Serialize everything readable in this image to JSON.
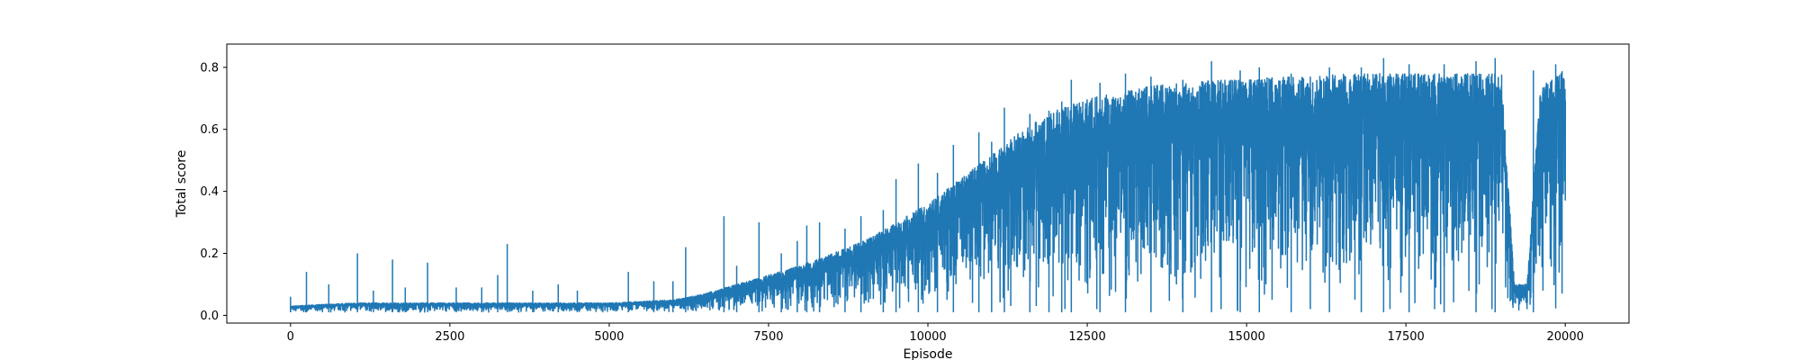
{
  "chart_data": {
    "type": "line",
    "title": "",
    "xlabel": "Episode",
    "ylabel": "Total score",
    "xlim": [
      -1000,
      21000
    ],
    "ylim": [
      -0.025,
      0.875
    ],
    "grid": false,
    "x_ticks": [
      0,
      2500,
      5000,
      7500,
      10000,
      12500,
      15000,
      17500,
      20000
    ],
    "y_ticks": [
      0.0,
      0.2,
      0.4,
      0.6,
      0.8
    ],
    "x_tick_labels": [
      "0",
      "2500",
      "5000",
      "7500",
      "10000",
      "12500",
      "15000",
      "17500",
      "20000"
    ],
    "y_tick_labels": [
      "0.0",
      "0.2",
      "0.4",
      "0.6",
      "0.8"
    ],
    "series": [
      {
        "color": "#1f77b4",
        "band": {
          "x": [
            0,
            1000,
            2000,
            3000,
            4000,
            5000,
            6000,
            6500,
            7000,
            7500,
            8000,
            8500,
            9000,
            9500,
            10000,
            10500,
            11000,
            11500,
            12000,
            12500,
            13000,
            13500,
            14000,
            14500,
            15000,
            15500,
            16000,
            16500,
            17000,
            17500,
            18000,
            18500,
            19000,
            19200,
            19400,
            19600,
            19800,
            20000
          ],
          "low": [
            0.01,
            0.01,
            0.01,
            0.01,
            0.01,
            0.01,
            0.01,
            0.01,
            0.01,
            0.01,
            0.01,
            0.01,
            0.01,
            0.01,
            0.01,
            0.01,
            0.01,
            0.01,
            0.01,
            0.01,
            0.01,
            0.01,
            0.01,
            0.01,
            0.01,
            0.01,
            0.01,
            0.01,
            0.01,
            0.01,
            0.01,
            0.01,
            0.01,
            0.01,
            0.01,
            0.01,
            0.01,
            0.06
          ],
          "high": [
            0.03,
            0.04,
            0.04,
            0.04,
            0.04,
            0.04,
            0.05,
            0.07,
            0.1,
            0.13,
            0.16,
            0.2,
            0.24,
            0.3,
            0.36,
            0.44,
            0.52,
            0.6,
            0.66,
            0.7,
            0.72,
            0.74,
            0.75,
            0.76,
            0.76,
            0.77,
            0.77,
            0.78,
            0.78,
            0.78,
            0.78,
            0.78,
            0.78,
            0.1,
            0.1,
            0.72,
            0.78,
            0.79
          ]
        },
        "spikes": [
          [
            0,
            0.06
          ],
          [
            250,
            0.14
          ],
          [
            600,
            0.1
          ],
          [
            1050,
            0.2
          ],
          [
            1300,
            0.08
          ],
          [
            1600,
            0.18
          ],
          [
            1800,
            0.09
          ],
          [
            2150,
            0.17
          ],
          [
            2600,
            0.09
          ],
          [
            3000,
            0.09
          ],
          [
            3250,
            0.13
          ],
          [
            3400,
            0.23
          ],
          [
            3800,
            0.08
          ],
          [
            4200,
            0.1
          ],
          [
            4500,
            0.08
          ],
          [
            5300,
            0.14
          ],
          [
            5700,
            0.11
          ],
          [
            6000,
            0.11
          ],
          [
            6200,
            0.22
          ],
          [
            6800,
            0.32
          ],
          [
            7000,
            0.16
          ],
          [
            7350,
            0.3
          ],
          [
            7700,
            0.2
          ],
          [
            7950,
            0.24
          ],
          [
            8100,
            0.29
          ],
          [
            8300,
            0.3
          ],
          [
            8700,
            0.28
          ],
          [
            8950,
            0.32
          ],
          [
            9300,
            0.34
          ],
          [
            9500,
            0.44
          ],
          [
            9850,
            0.49
          ],
          [
            10150,
            0.46
          ],
          [
            10400,
            0.55
          ],
          [
            10800,
            0.59
          ],
          [
            11000,
            0.56
          ],
          [
            11200,
            0.67
          ],
          [
            11600,
            0.65
          ],
          [
            11900,
            0.66
          ],
          [
            12100,
            0.69
          ],
          [
            12250,
            0.76
          ],
          [
            12700,
            0.75
          ],
          [
            13100,
            0.78
          ],
          [
            13500,
            0.77
          ],
          [
            14000,
            0.76
          ],
          [
            14450,
            0.82
          ],
          [
            14900,
            0.79
          ],
          [
            15200,
            0.8
          ],
          [
            15700,
            0.78
          ],
          [
            16300,
            0.8
          ],
          [
            16800,
            0.8
          ],
          [
            17150,
            0.83
          ],
          [
            17550,
            0.81
          ],
          [
            18100,
            0.81
          ],
          [
            18600,
            0.82
          ],
          [
            18900,
            0.83
          ],
          [
            19500,
            0.79
          ],
          [
            19850,
            0.81
          ]
        ],
        "dips": [
          [
            9900,
            0.05
          ],
          [
            10300,
            0.05
          ],
          [
            10700,
            0.04
          ],
          [
            11300,
            0.03
          ],
          [
            11700,
            0.03
          ],
          [
            12150,
            0.02
          ],
          [
            12650,
            0.02
          ],
          [
            12800,
            0.35
          ],
          [
            13150,
            0.15
          ],
          [
            13550,
            0.35
          ],
          [
            13900,
            0.1
          ],
          [
            14300,
            0.2
          ],
          [
            14600,
            0.02
          ],
          [
            14750,
            0.5
          ],
          [
            15050,
            0.15
          ],
          [
            15400,
            0.05
          ],
          [
            15650,
            0.45
          ],
          [
            16000,
            0.02
          ],
          [
            16350,
            0.3
          ],
          [
            16700,
            0.05
          ],
          [
            16900,
            0.3
          ],
          [
            17250,
            0.02
          ],
          [
            17450,
            0.45
          ],
          [
            17700,
            0.15
          ],
          [
            17950,
            0.02
          ],
          [
            18300,
            0.4
          ],
          [
            18650,
            0.1
          ],
          [
            18850,
            0.02
          ],
          [
            19400,
            0.02
          ],
          [
            19650,
            0.08
          ],
          [
            19950,
            0.07
          ]
        ]
      }
    ]
  }
}
